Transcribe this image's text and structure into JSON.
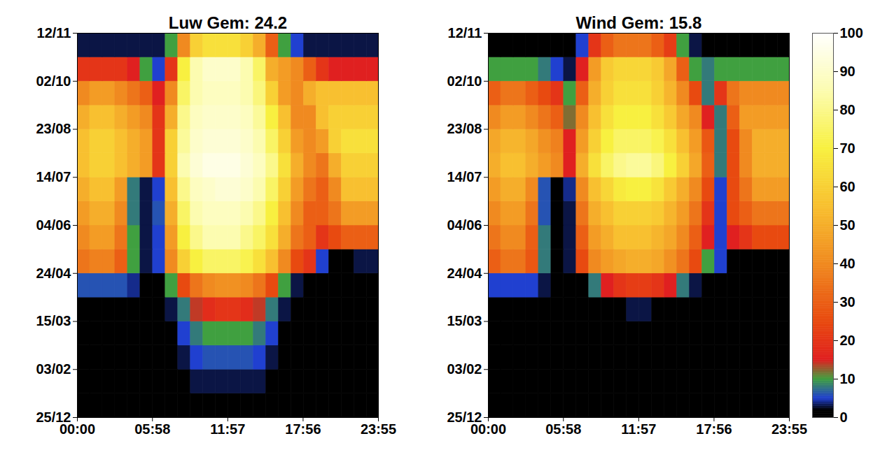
{
  "chart_data": [
    {
      "type": "heatmap",
      "title": "Luw Gem: 24.2",
      "xlim": [
        0,
        1435
      ],
      "xticks": [
        {
          "value": 0,
          "label": "00:00"
        },
        {
          "value": 358,
          "label": "05:58"
        },
        {
          "value": 717,
          "label": "11:57"
        },
        {
          "value": 1076,
          "label": "17:56"
        },
        {
          "value": 1435,
          "label": "23:55"
        }
      ],
      "ylim": [
        0,
        320
      ],
      "yticks": [
        {
          "value": 0,
          "label": "25/12"
        },
        {
          "value": 40,
          "label": "03/02"
        },
        {
          "value": 80,
          "label": "15/03"
        },
        {
          "value": 120,
          "label": "24/04"
        },
        {
          "value": 160,
          "label": "04/06"
        },
        {
          "value": 200,
          "label": "14/07"
        },
        {
          "value": 240,
          "label": "23/08"
        },
        {
          "value": 280,
          "label": "02/10"
        },
        {
          "value": 320,
          "label": "12/11"
        }
      ],
      "x": [
        0,
        60,
        120,
        180,
        240,
        300,
        360,
        420,
        480,
        540,
        600,
        660,
        720,
        780,
        840,
        900,
        960,
        1020,
        1080,
        1140,
        1200,
        1260,
        1320,
        1380
      ],
      "y": [
        0,
        20,
        40,
        60,
        80,
        100,
        120,
        140,
        160,
        180,
        200,
        220,
        240,
        260,
        280,
        300
      ],
      "values": [
        [
          1,
          1,
          1,
          1,
          1,
          1,
          1,
          2,
          2,
          2,
          2,
          2,
          2,
          2,
          2,
          2,
          2,
          1,
          1,
          1,
          1,
          1,
          1,
          1
        ],
        [
          0,
          0,
          0,
          0,
          0,
          0,
          0,
          1,
          2,
          3,
          3,
          3,
          3,
          3,
          3,
          2,
          1,
          0,
          0,
          0,
          0,
          0,
          0,
          0
        ],
        [
          0,
          0,
          0,
          0,
          0,
          0,
          0,
          1,
          3,
          5,
          6,
          6,
          6,
          6,
          5,
          3,
          1,
          0,
          0,
          0,
          0,
          0,
          0,
          0
        ],
        [
          0,
          0,
          0,
          0,
          0,
          0,
          0,
          2,
          5,
          8,
          10,
          10,
          10,
          10,
          8,
          5,
          2,
          0,
          0,
          0,
          0,
          0,
          0,
          0
        ],
        [
          0,
          0,
          0,
          0,
          0,
          0,
          1,
          3,
          8,
          14,
          18,
          20,
          20,
          18,
          14,
          8,
          3,
          1,
          0,
          0,
          0,
          0,
          0,
          0
        ],
        [
          6,
          6,
          6,
          6,
          4,
          1,
          2,
          10,
          25,
          35,
          40,
          42,
          42,
          40,
          35,
          25,
          10,
          3,
          1,
          1,
          1,
          1,
          1,
          1
        ],
        [
          35,
          38,
          38,
          30,
          10,
          3,
          5,
          40,
          60,
          70,
          75,
          75,
          75,
          72,
          65,
          55,
          40,
          25,
          20,
          5,
          2,
          2,
          3,
          3
        ],
        [
          40,
          45,
          45,
          35,
          10,
          3,
          5,
          45,
          70,
          80,
          85,
          85,
          85,
          80,
          75,
          65,
          50,
          35,
          30,
          20,
          25,
          30,
          30,
          30
        ],
        [
          45,
          50,
          50,
          40,
          8,
          3,
          6,
          50,
          75,
          85,
          88,
          88,
          88,
          85,
          80,
          70,
          55,
          40,
          30,
          30,
          35,
          45,
          45,
          45
        ],
        [
          50,
          55,
          55,
          45,
          8,
          3,
          5,
          55,
          80,
          88,
          90,
          92,
          92,
          90,
          85,
          75,
          60,
          45,
          35,
          30,
          40,
          55,
          55,
          55
        ],
        [
          55,
          60,
          60,
          55,
          50,
          45,
          20,
          60,
          85,
          92,
          95,
          95,
          95,
          92,
          88,
          80,
          65,
          50,
          40,
          35,
          50,
          60,
          60,
          60
        ],
        [
          55,
          60,
          60,
          55,
          50,
          45,
          20,
          60,
          82,
          90,
          92,
          92,
          92,
          90,
          85,
          75,
          60,
          45,
          40,
          45,
          60,
          65,
          65,
          65
        ],
        [
          50,
          55,
          55,
          50,
          45,
          40,
          20,
          50,
          80,
          88,
          90,
          90,
          90,
          88,
          82,
          70,
          55,
          40,
          40,
          55,
          60,
          60,
          60,
          60
        ],
        [
          40,
          45,
          45,
          40,
          35,
          30,
          15,
          40,
          75,
          85,
          88,
          88,
          88,
          85,
          78,
          60,
          45,
          40,
          50,
          55,
          55,
          55,
          55,
          55
        ],
        [
          20,
          20,
          20,
          20,
          15,
          10,
          5,
          20,
          70,
          85,
          90,
          90,
          90,
          85,
          75,
          50,
          45,
          40,
          30,
          20,
          15,
          15,
          15,
          15
        ],
        [
          3,
          3,
          3,
          3,
          3,
          3,
          3,
          10,
          40,
          60,
          65,
          65,
          65,
          60,
          50,
          30,
          10,
          5,
          3,
          3,
          3,
          3,
          3,
          3
        ]
      ]
    },
    {
      "type": "heatmap",
      "title": "Wind Gem: 15.8",
      "xlim": [
        0,
        1435
      ],
      "xticks": [
        {
          "value": 0,
          "label": "00:00"
        },
        {
          "value": 358,
          "label": "05:58"
        },
        {
          "value": 717,
          "label": "11:57"
        },
        {
          "value": 1076,
          "label": "17:56"
        },
        {
          "value": 1435,
          "label": "23:55"
        }
      ],
      "ylim": [
        0,
        320
      ],
      "yticks": [
        {
          "value": 0,
          "label": "25/12"
        },
        {
          "value": 40,
          "label": "03/02"
        },
        {
          "value": 80,
          "label": "15/03"
        },
        {
          "value": 120,
          "label": "24/04"
        },
        {
          "value": 160,
          "label": "04/06"
        },
        {
          "value": 200,
          "label": "14/07"
        },
        {
          "value": 240,
          "label": "23/08"
        },
        {
          "value": 280,
          "label": "02/10"
        },
        {
          "value": 320,
          "label": "12/11"
        }
      ],
      "x": [
        0,
        60,
        120,
        180,
        240,
        300,
        360,
        420,
        480,
        540,
        600,
        660,
        720,
        780,
        840,
        900,
        960,
        1020,
        1080,
        1140,
        1200,
        1260,
        1320,
        1380
      ],
      "y": [
        0,
        20,
        40,
        60,
        80,
        100,
        120,
        140,
        160,
        180,
        200,
        220,
        240,
        260,
        280,
        300
      ],
      "values": [
        [
          0,
          0,
          0,
          0,
          0,
          0,
          0,
          0,
          0,
          0,
          0,
          0,
          0,
          0,
          0,
          0,
          0,
          0,
          0,
          0,
          0,
          0,
          0,
          0
        ],
        [
          0,
          0,
          0,
          0,
          0,
          0,
          0,
          0,
          0,
          0,
          0,
          0,
          0,
          0,
          0,
          0,
          0,
          0,
          0,
          0,
          0,
          0,
          0,
          0
        ],
        [
          0,
          0,
          0,
          0,
          0,
          0,
          0,
          0,
          0,
          0,
          0,
          0,
          0,
          0,
          0,
          0,
          0,
          0,
          0,
          0,
          0,
          0,
          0,
          0
        ],
        [
          0,
          0,
          0,
          0,
          0,
          0,
          0,
          0,
          0,
          0,
          0,
          0,
          0,
          0,
          0,
          0,
          0,
          0,
          0,
          0,
          0,
          0,
          0,
          0
        ],
        [
          0,
          0,
          0,
          0,
          0,
          0,
          0,
          0,
          0,
          1,
          2,
          3,
          3,
          2,
          1,
          0,
          0,
          0,
          0,
          0,
          0,
          0,
          0,
          0
        ],
        [
          5,
          5,
          5,
          5,
          3,
          1,
          0,
          1,
          8,
          15,
          20,
          22,
          22,
          20,
          15,
          8,
          3,
          1,
          0,
          0,
          0,
          0,
          0,
          0
        ],
        [
          30,
          35,
          35,
          28,
          8,
          2,
          3,
          25,
          40,
          45,
          48,
          50,
          50,
          48,
          42,
          35,
          25,
          10,
          5,
          1,
          1,
          1,
          1,
          1
        ],
        [
          35,
          40,
          40,
          30,
          8,
          2,
          3,
          30,
          45,
          50,
          55,
          55,
          55,
          52,
          48,
          40,
          30,
          15,
          5,
          15,
          20,
          25,
          25,
          25
        ],
        [
          40,
          45,
          45,
          35,
          6,
          2,
          3,
          35,
          50,
          55,
          60,
          60,
          60,
          58,
          52,
          45,
          35,
          20,
          5,
          25,
          30,
          35,
          35,
          35
        ],
        [
          45,
          50,
          50,
          40,
          6,
          2,
          4,
          40,
          55,
          62,
          68,
          70,
          70,
          66,
          58,
          50,
          40,
          25,
          5,
          25,
          35,
          45,
          45,
          45
        ],
        [
          50,
          55,
          55,
          50,
          45,
          40,
          15,
          50,
          65,
          75,
          80,
          82,
          82,
          78,
          70,
          60,
          48,
          30,
          8,
          25,
          40,
          50,
          50,
          50
        ],
        [
          48,
          52,
          52,
          48,
          42,
          38,
          15,
          45,
          60,
          70,
          75,
          75,
          75,
          72,
          65,
          55,
          45,
          28,
          8,
          25,
          40,
          50,
          50,
          50
        ],
        [
          40,
          45,
          45,
          40,
          35,
          30,
          12,
          40,
          55,
          65,
          70,
          70,
          70,
          65,
          58,
          48,
          40,
          15,
          8,
          30,
          45,
          45,
          45,
          45
        ],
        [
          30,
          35,
          35,
          30,
          25,
          20,
          10,
          30,
          50,
          60,
          65,
          65,
          65,
          60,
          52,
          40,
          25,
          8,
          20,
          35,
          40,
          40,
          40,
          40
        ],
        [
          10,
          10,
          10,
          10,
          8,
          5,
          3,
          15,
          45,
          58,
          62,
          62,
          62,
          58,
          48,
          30,
          10,
          8,
          10,
          10,
          10,
          10,
          10,
          10
        ],
        [
          1,
          1,
          1,
          1,
          1,
          1,
          1,
          5,
          20,
          30,
          35,
          35,
          35,
          30,
          22,
          10,
          3,
          1,
          1,
          1,
          1,
          1,
          1,
          1
        ]
      ],
      "colorbar": {
        "range": [
          0,
          100
        ],
        "ticks": [
          0,
          10,
          20,
          30,
          40,
          50,
          60,
          70,
          80,
          90,
          100
        ]
      }
    }
  ]
}
